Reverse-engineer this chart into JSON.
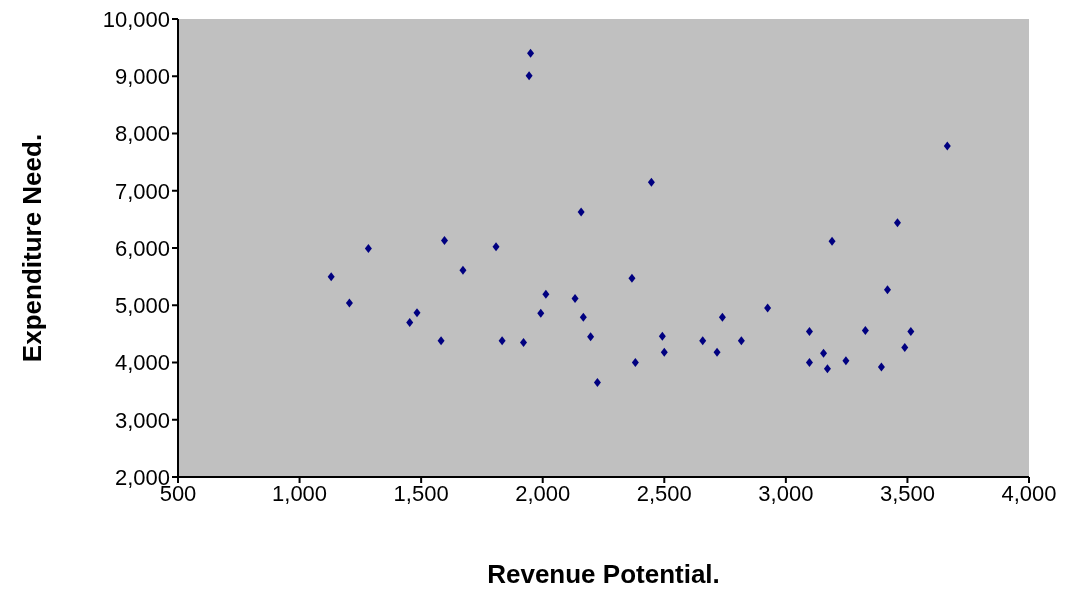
{
  "chart_data": {
    "type": "scatter",
    "xlabel": "Revenue Potential.",
    "ylabel": "Expenditure Need.",
    "x": [
      1130,
      1205,
      1283,
      1453,
      1483,
      1582,
      1596,
      1672,
      1808,
      1833,
      1921,
      1944,
      1950,
      1992,
      2013,
      2133,
      2158,
      2167,
      2197,
      2225,
      2367,
      2381,
      2447,
      2492,
      2500,
      2658,
      2717,
      2739,
      2817,
      2925,
      3097,
      3097,
      3155,
      3171,
      3190,
      3247,
      3327,
      3393,
      3418,
      3459,
      3489,
      3514,
      3664
    ],
    "series": [
      {
        "color": "#000080",
        "values": [
          5500,
          5040,
          5990,
          4700,
          4870,
          4380,
          6130,
          5610,
          6020,
          4380,
          4350,
          9010,
          9400,
          4860,
          5190,
          5120,
          6630,
          4790,
          4450,
          3650,
          5470,
          4000,
          7150,
          4460,
          4180,
          4380,
          4180,
          4790,
          4380,
          4950,
          4540,
          4000,
          4160,
          3890,
          6120,
          4030,
          4560,
          3920,
          5270,
          6440,
          4260,
          4540,
          7780
        ]
      }
    ],
    "xlim": [
      500,
      4000
    ],
    "xticks": [
      500,
      {
        "value": 1000,
        "label": "1,000"
      },
      {
        "value": 1500,
        "label": "1,500"
      },
      {
        "value": 2000,
        "label": "2,000"
      },
      {
        "value": 2500,
        "label": "2,500"
      },
      {
        "value": 3000,
        "label": "3,000"
      },
      {
        "value": 3500,
        "label": "3,500"
      },
      {
        "value": 4000,
        "label": "4,000"
      }
    ],
    "ylim": [
      2000,
      10000
    ],
    "yticks": [
      {
        "value": 2000,
        "label": "2,000"
      },
      {
        "value": 3000,
        "label": "3,000"
      },
      {
        "value": 4000,
        "label": "4,000"
      },
      {
        "value": 5000,
        "label": "5,000"
      },
      {
        "value": 6000,
        "label": "6,000"
      },
      {
        "value": 7000,
        "label": "7,000"
      },
      {
        "value": 8000,
        "label": "8,000"
      },
      {
        "value": 9000,
        "label": "9,000"
      },
      {
        "value": 10000,
        "label": "10,000"
      }
    ],
    "grid": false,
    "legend": false,
    "marker": "diamond"
  }
}
